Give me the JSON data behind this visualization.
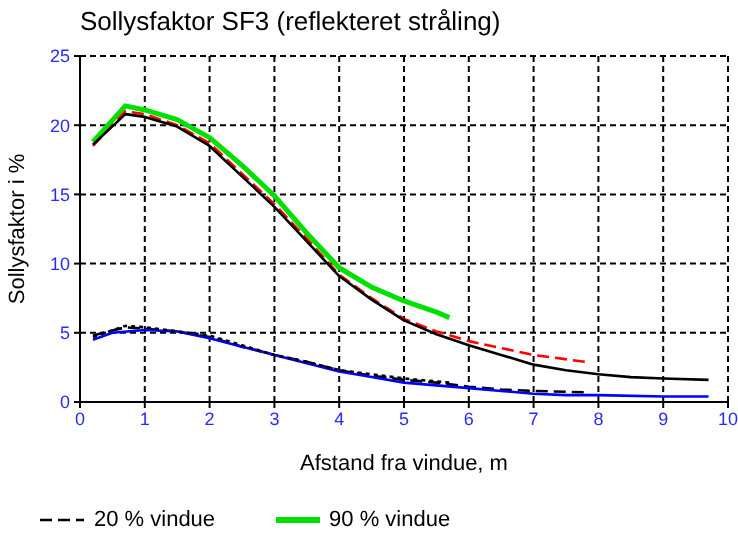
{
  "chart_data": {
    "type": "line",
    "title": "Sollysfaktor SF3 (reflekteret stråling)",
    "xlabel": "Afstand fra vindue,  m",
    "ylabel": "Sollysfaktor  i  %",
    "xlim": [
      0,
      10
    ],
    "xticks": [
      0,
      1,
      2,
      3,
      4,
      5,
      6,
      7,
      8,
      9,
      10
    ],
    "ylim": [
      0,
      25
    ],
    "yticks": [
      0,
      5,
      10,
      15,
      20,
      25
    ],
    "grid": true,
    "legend": "bottom",
    "marker": "none",
    "series": [
      {
        "name": "20 % vindue",
        "color": "#000000",
        "line_style": "dashed",
        "x": [
          0.2,
          0.7,
          1,
          1.5,
          2,
          2.5,
          3,
          3.5,
          4,
          4.5,
          5,
          5.5,
          6,
          6.5,
          7,
          7.8
        ],
        "values": [
          4.8,
          5.4,
          5.3,
          5.1,
          4.7,
          4,
          3.4,
          2.9,
          2.3,
          1.9,
          1.6,
          1.4,
          1.1,
          0.9,
          0.8,
          0.7
        ]
      },
      {
        "name": "90 % vindue",
        "color": "#00e000",
        "line_style": "solid",
        "x": [
          0.2,
          0.7,
          1,
          1.5,
          2,
          2.5,
          3,
          3.5,
          4,
          4.5,
          5,
          5.5,
          5.7
        ],
        "values": [
          18.8,
          21.4,
          21.1,
          20.4,
          19.1,
          17.1,
          14.9,
          12.2,
          9.7,
          8.3,
          7.3,
          6.5,
          6.1
        ]
      },
      {
        "color": "#ff0000",
        "line_style": "dashed",
        "x": [
          0.2,
          0.7,
          1,
          1.5,
          2,
          2.5,
          3,
          3.5,
          4,
          4.5,
          5,
          5.5,
          6,
          6.5,
          7,
          7.8
        ],
        "values": [
          18.5,
          21,
          20.8,
          20,
          18.7,
          16.5,
          14.3,
          11.8,
          9.2,
          7.5,
          6,
          5.1,
          4.4,
          3.9,
          3.4,
          2.9
        ]
      },
      {
        "color": "#000000",
        "line_style": "solid",
        "x": [
          0.2,
          0.7,
          1,
          1.5,
          2,
          2.5,
          3,
          3.5,
          4,
          4.5,
          5,
          5.5,
          6,
          6.5,
          7,
          7.5,
          8,
          8.5,
          9,
          9.7
        ],
        "values": [
          18.6,
          20.8,
          20.6,
          19.9,
          18.5,
          16.3,
          14.1,
          11.6,
          9.1,
          7.4,
          5.9,
          4.9,
          4.1,
          3.4,
          2.7,
          2.3,
          2,
          1.8,
          1.7,
          1.6
        ]
      },
      {
        "color": "#0000ff",
        "line_style": "solid",
        "x": [
          0.2,
          0.5,
          1,
          1.5,
          2,
          2.5,
          3,
          3.5,
          4,
          4.5,
          5,
          5.5,
          6,
          6.5,
          7,
          7.5,
          8,
          9,
          9.7
        ],
        "values": [
          4.5,
          5,
          5.2,
          5.1,
          4.6,
          4,
          3.4,
          2.8,
          2.2,
          1.8,
          1.4,
          1.2,
          1,
          0.8,
          0.6,
          0.5,
          0.5,
          0.4,
          0.4
        ]
      },
      {
        "color": "#000000",
        "line_style": "dotted",
        "x": [
          0.2,
          0.7,
          1,
          1.5,
          2,
          2.5,
          3,
          3.5,
          4,
          4.5,
          5,
          5.7
        ],
        "values": [
          4.7,
          5.5,
          5.4,
          5.1,
          4.8,
          4.1,
          3.4,
          2.9,
          2.3,
          2,
          1.7,
          1.4
        ]
      }
    ]
  }
}
